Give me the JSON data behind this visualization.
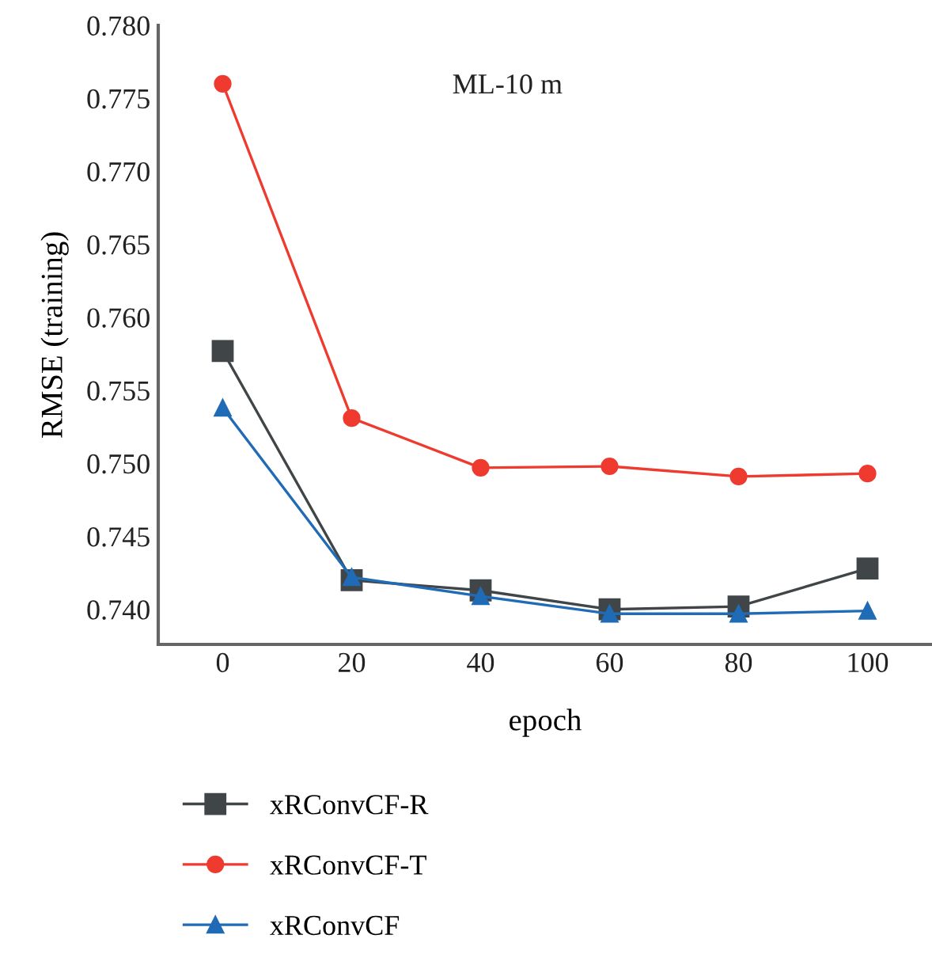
{
  "chart_data": {
    "type": "line",
    "annotations": [
      "ML-10 m"
    ],
    "xlabel": "epoch",
    "ylabel": "RMSE (training)",
    "x": [
      0,
      20,
      40,
      60,
      80,
      100
    ],
    "xlim": [
      -10,
      110
    ],
    "xticks": [
      0,
      20,
      40,
      60,
      80,
      100
    ],
    "ylim": [
      0.7376,
      0.78
    ],
    "yticks": [
      {
        "value": 0.74,
        "label": "0.740"
      },
      {
        "value": 0.745,
        "label": "0.745"
      },
      {
        "value": 0.75,
        "label": "0.750"
      },
      {
        "value": 0.755,
        "label": "0.755"
      },
      {
        "value": 0.76,
        "label": "0.760"
      },
      {
        "value": 0.765,
        "label": "0.765"
      },
      {
        "value": 0.77,
        "label": "0.770"
      },
      {
        "value": 0.775,
        "label": "0.775"
      },
      {
        "value": 0.78,
        "label": "0.780"
      }
    ],
    "grid": false,
    "legend": "bottom",
    "line_style": "solid",
    "series": [
      {
        "name": "xRConvCF-R",
        "color": "#404548",
        "marker": "square",
        "values": [
          0.7577,
          0.742,
          0.7413,
          0.74,
          0.7402,
          0.7428
        ]
      },
      {
        "name": "xRConvCF-T",
        "color": "#ee3a2f",
        "marker": "circle",
        "values": [
          0.776,
          0.7531,
          0.7497,
          0.7498,
          0.7491,
          0.7493
        ]
      },
      {
        "name": "xRConvCF",
        "color": "#1f6bb6",
        "marker": "triangle",
        "values": [
          0.7538,
          0.7422,
          0.7409,
          0.7397,
          0.7397,
          0.7399
        ]
      }
    ]
  }
}
